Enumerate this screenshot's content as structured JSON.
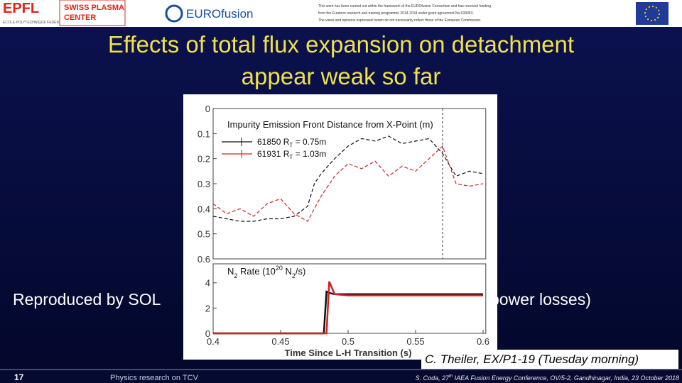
{
  "header": {
    "logo_epfl": "EPFL",
    "logo_epfl_sub": "ECOLE POLYTECHNIQUE FEDERALE DE LAUSANNE",
    "logo_spc": [
      "SWISS PLASMA",
      "CENTER"
    ],
    "logo_eurofusion": "EUROfusion",
    "disclaimer": [
      "This work has been carried out within the framework of the EUROfusion Consortium and has received funding",
      "from the Euratom research and training programme 2014-2018 under grant agreement No 633053.",
      "The views and opinions expressed herein do not necessarily reflect those of the European Commission."
    ]
  },
  "title": [
    "Effects of total flux expansion on detachment",
    "appear weak so far"
  ],
  "body": {
    "left": "Reproduced by SOL",
    "right": "power losses)"
  },
  "figure": {
    "top": {
      "title": "Impurity Emission Front Distance from X-Point (m)",
      "xlim": [
        0.4,
        0.602
      ],
      "ylim": [
        0,
        0.6
      ],
      "y_inverted": true,
      "yticks": [
        0,
        0.1,
        0.2,
        0.3,
        0.4,
        0.5,
        0.6
      ],
      "vline": 0.57,
      "x": [
        0.4,
        0.41,
        0.42,
        0.43,
        0.44,
        0.45,
        0.46,
        0.47,
        0.475,
        0.48,
        0.49,
        0.5,
        0.51,
        0.52,
        0.53,
        0.54,
        0.55,
        0.56,
        0.57,
        0.58,
        0.59,
        0.6
      ],
      "series": [
        {
          "name": [
            "61850 R",
            "T",
            " = 0.75m"
          ],
          "color": "#111111",
          "values": [
            0.43,
            0.44,
            0.45,
            0.45,
            0.44,
            0.44,
            0.43,
            0.39,
            0.3,
            0.26,
            0.2,
            0.15,
            0.12,
            0.13,
            0.11,
            0.14,
            0.13,
            0.12,
            0.18,
            0.27,
            0.25,
            0.26
          ]
        },
        {
          "name": [
            "61931 R",
            "T",
            " = 1.03m"
          ],
          "color": "#d42020",
          "values": [
            0.38,
            0.42,
            0.4,
            0.43,
            0.38,
            0.36,
            0.42,
            0.45,
            0.4,
            0.35,
            0.27,
            0.22,
            0.24,
            0.21,
            0.27,
            0.23,
            0.25,
            0.2,
            0.15,
            0.3,
            0.31,
            0.3
          ]
        }
      ]
    },
    "bottom": {
      "title": [
        "N",
        "2",
        " Rate (10",
        "20",
        " N",
        "2",
        "/s)"
      ],
      "xlim": [
        0.4,
        0.602
      ],
      "ylim": [
        0,
        5.5
      ],
      "yticks": [
        0,
        2,
        4
      ],
      "xticks": [
        0.4,
        0.45,
        0.5,
        0.55,
        0.6
      ],
      "xlabel": "Time Since L-H Transition (s)",
      "x": [
        0.4,
        0.48,
        0.482,
        0.484,
        0.486,
        0.49,
        0.5,
        0.55,
        0.6
      ],
      "series": [
        {
          "color": "#111111",
          "values": [
            0,
            0,
            0,
            3.3,
            3.2,
            3.1,
            3.1,
            3.1,
            3.1
          ]
        },
        {
          "color": "#d42020",
          "values": [
            0,
            0,
            0,
            0,
            4.1,
            3.1,
            3.0,
            3.0,
            3.0
          ]
        }
      ]
    }
  },
  "caption": "C. Theiler, EX/P1-19 (Tuesday morning)",
  "footer": {
    "page": "17",
    "left": "Physics research on TCV",
    "citation": [
      "S. Coda, 27",
      "th",
      " IAEA Fusion Energy Conference, OV/5-2, Gandhinagar, India, 23 October 2018"
    ]
  }
}
